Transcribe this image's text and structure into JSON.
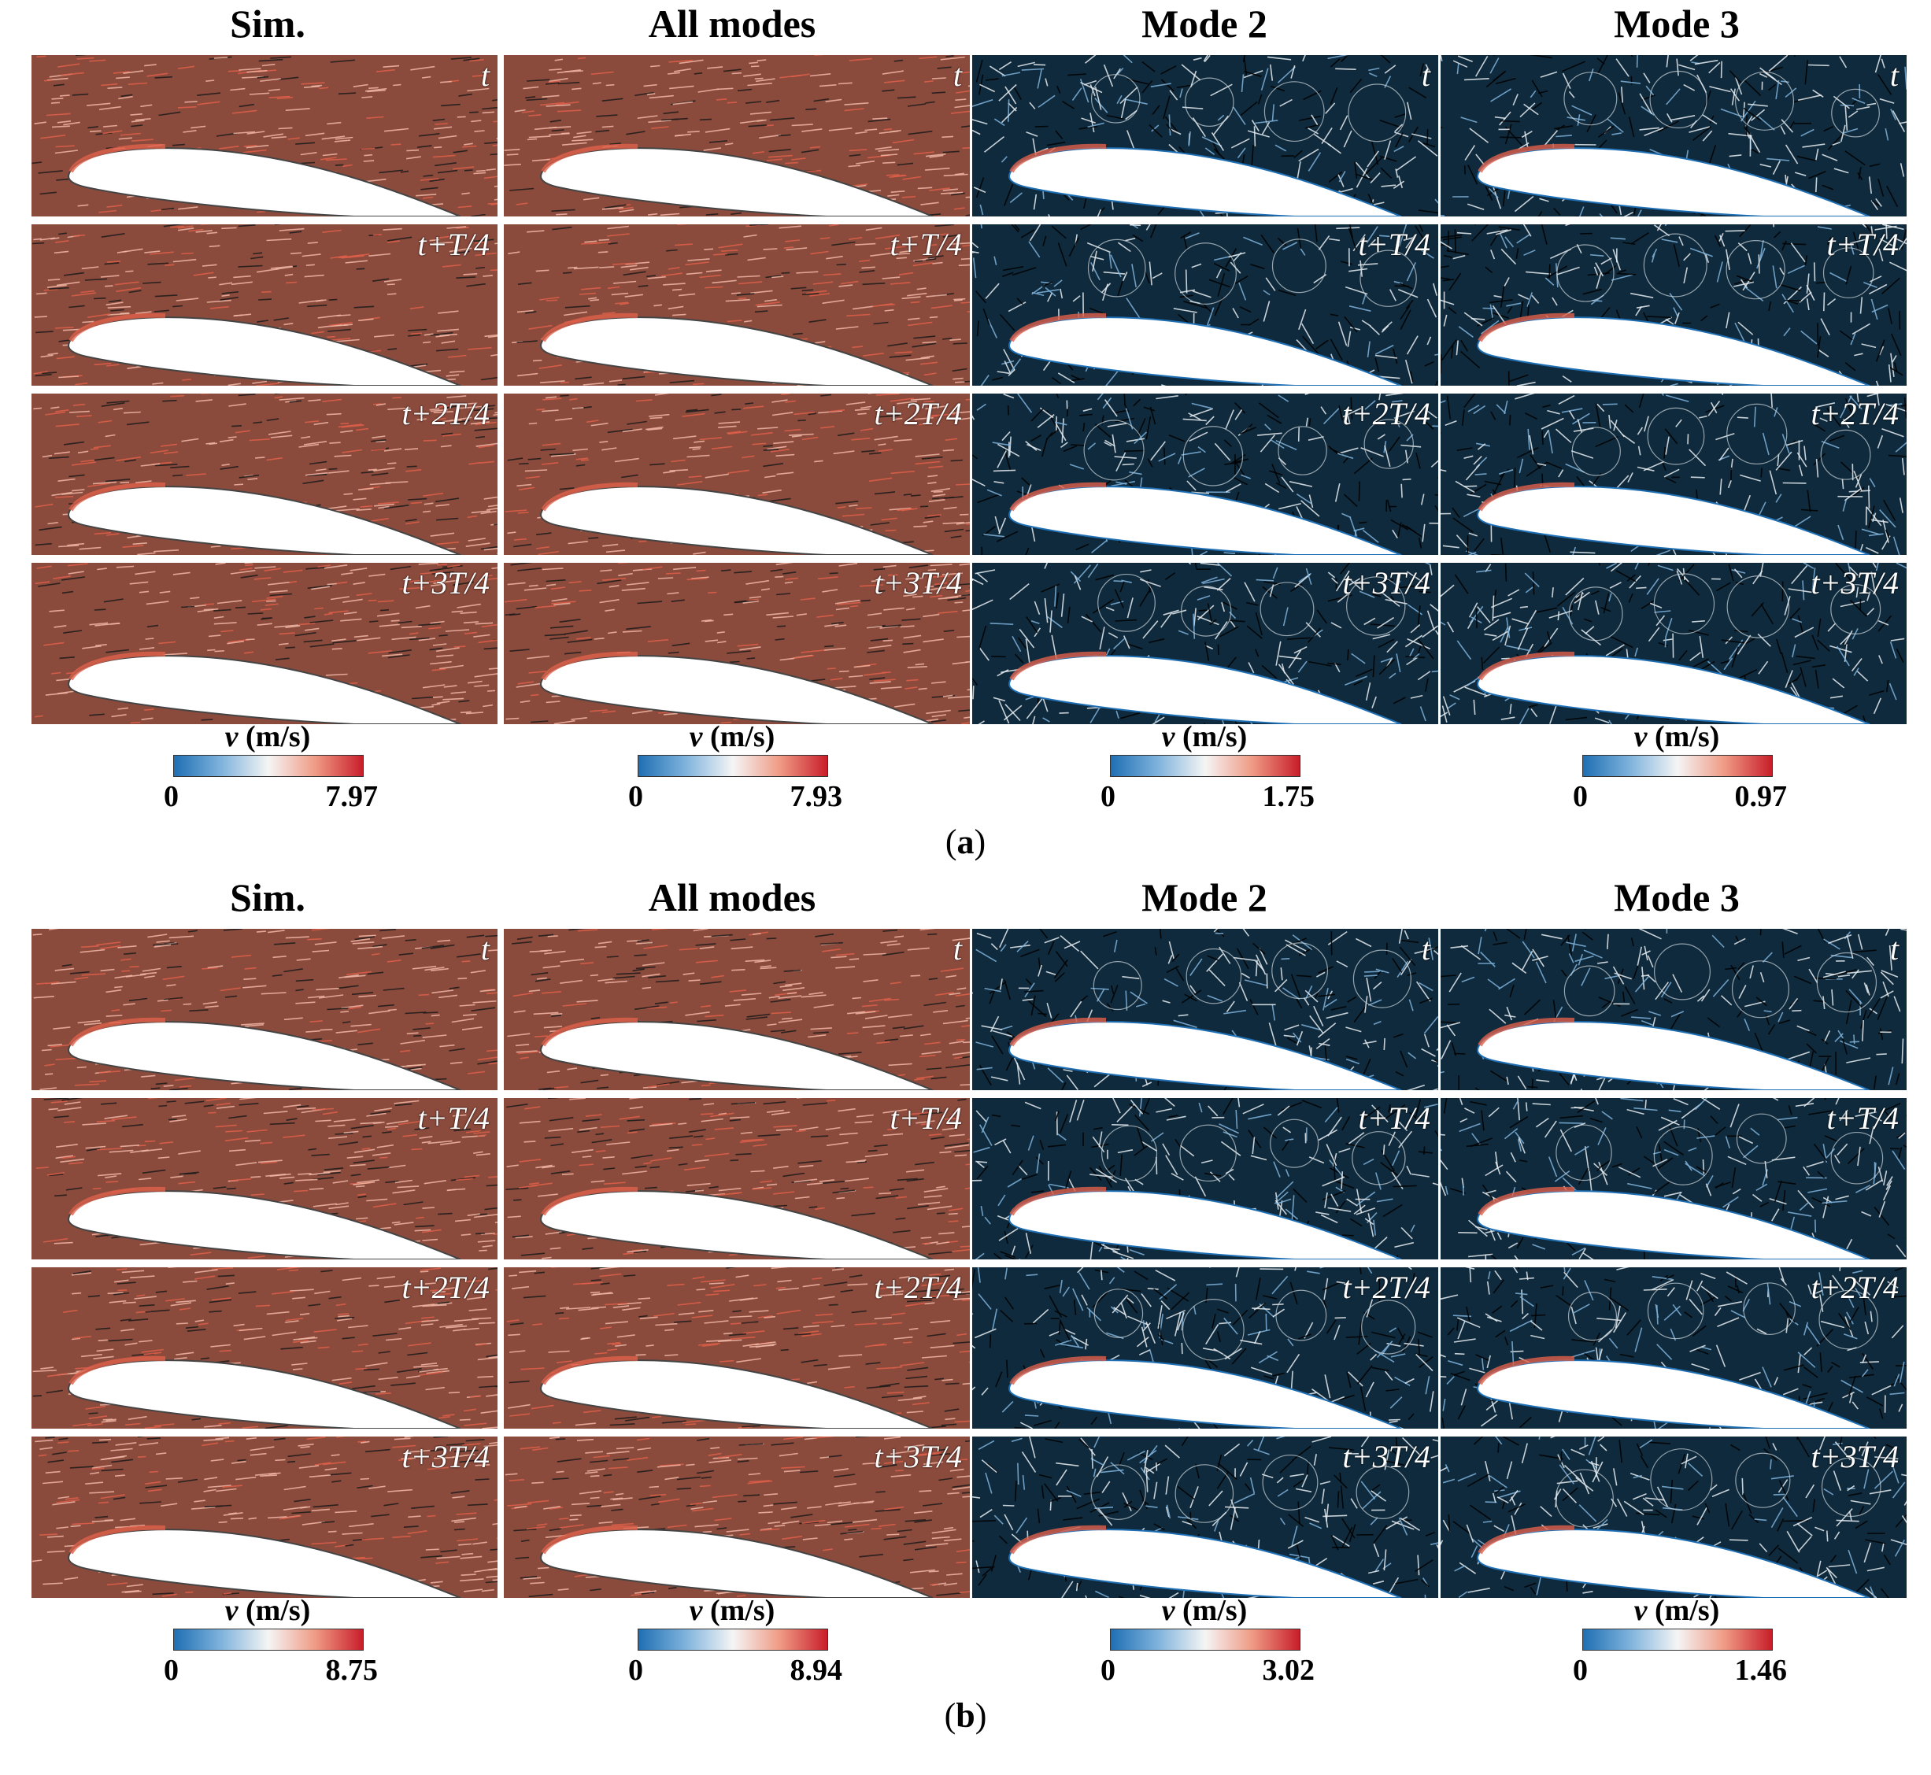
{
  "panels": [
    {
      "label": "a",
      "columns": [
        {
          "title": "Sim.",
          "cbar_label": "v",
          "cbar_unit": "(m/s)",
          "min": "0",
          "max": "7.97",
          "style": "sim"
        },
        {
          "title": "All modes",
          "cbar_label": "v",
          "cbar_unit": "(m/s)",
          "min": "0",
          "max": "7.93",
          "style": "sim"
        },
        {
          "title": "Mode 2",
          "cbar_label": "v",
          "cbar_unit": "(m/s)",
          "min": "0",
          "max": "1.75",
          "style": "mode"
        },
        {
          "title": "Mode 3",
          "cbar_label": "v",
          "cbar_unit": "(m/s)",
          "min": "0",
          "max": "0.97",
          "style": "mode"
        }
      ],
      "time_labels": [
        "t",
        "t+T/4",
        "t+2T/4",
        "t+3T/4"
      ]
    },
    {
      "label": "b",
      "columns": [
        {
          "title": "Sim.",
          "cbar_label": "v",
          "cbar_unit": "(m/s)",
          "min": "0",
          "max": "8.75",
          "style": "sim"
        },
        {
          "title": "All modes",
          "cbar_label": "v",
          "cbar_unit": "(m/s)",
          "min": "0",
          "max": "8.94",
          "style": "sim"
        },
        {
          "title": "Mode 2",
          "cbar_label": "v",
          "cbar_unit": "(m/s)",
          "min": "0",
          "max": "3.02",
          "style": "mode"
        },
        {
          "title": "Mode 3",
          "cbar_label": "v",
          "cbar_unit": "(m/s)",
          "min": "0",
          "max": "1.46",
          "style": "mode"
        }
      ],
      "time_labels": [
        "t",
        "t+T/4",
        "t+2T/4",
        "t+3T/4"
      ]
    }
  ],
  "colors": {
    "sim_flow": "#8a4a3c",
    "sim_hot": "#e0604a",
    "mode_flow": "#0f2a3c",
    "mode_blue": "#1f6fb4",
    "airfoil": "#ffffff"
  }
}
